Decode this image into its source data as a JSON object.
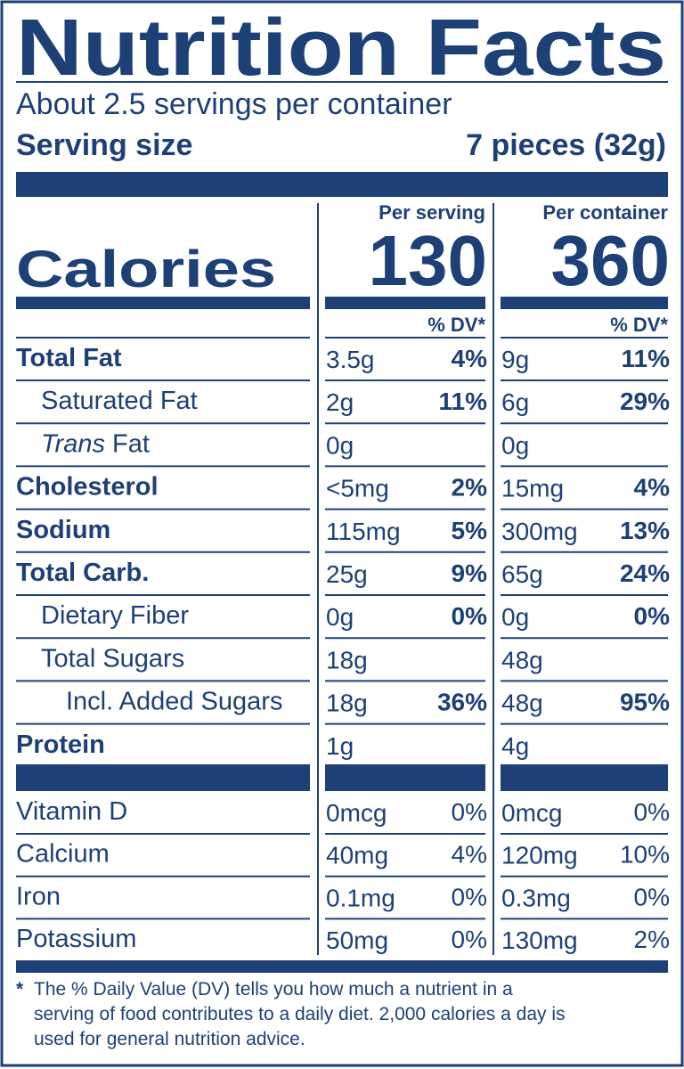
{
  "title": "Nutrition Facts",
  "servings": "About 2.5 servings per container",
  "serving_size": {
    "label": "Serving size",
    "value": "7 pieces (32g)"
  },
  "calories": {
    "label": "Calories",
    "columns": [
      {
        "heading": "Per serving",
        "value": "130"
      },
      {
        "heading": "Per container",
        "value": "360"
      }
    ]
  },
  "dv_heading": "% DV*",
  "nutrients": [
    {
      "name": "Total Fat",
      "bold": true,
      "indent": 0,
      "serving": {
        "amount": "3.5g",
        "dv": "4%"
      },
      "container": {
        "amount": "9g",
        "dv": "11%"
      }
    },
    {
      "name": "Saturated Fat",
      "bold": false,
      "indent": 1,
      "serving": {
        "amount": "2g",
        "dv": "11%"
      },
      "container": {
        "amount": "6g",
        "dv": "29%"
      }
    },
    {
      "name_italic": "Trans",
      "name": "Fat",
      "bold": false,
      "indent": 1,
      "serving": {
        "amount": "0g"
      },
      "container": {
        "amount": "0g"
      }
    },
    {
      "name": "Cholesterol",
      "bold": true,
      "indent": 0,
      "serving": {
        "amount": "<5mg",
        "dv": "2%"
      },
      "container": {
        "amount": "15mg",
        "dv": "4%"
      }
    },
    {
      "name": "Sodium",
      "bold": true,
      "indent": 0,
      "serving": {
        "amount": "115mg",
        "dv": "5%"
      },
      "container": {
        "amount": "300mg",
        "dv": "13%"
      }
    },
    {
      "name": "Total Carb.",
      "bold": true,
      "indent": 0,
      "serving": {
        "amount": "25g",
        "dv": "9%"
      },
      "container": {
        "amount": "65g",
        "dv": "24%"
      }
    },
    {
      "name": "Dietary Fiber",
      "bold": false,
      "indent": 1,
      "serving": {
        "amount": "0g",
        "dv": "0%"
      },
      "container": {
        "amount": "0g",
        "dv": "0%"
      }
    },
    {
      "name": "Total Sugars",
      "bold": false,
      "indent": 1,
      "serving": {
        "amount": "18g"
      },
      "container": {
        "amount": "48g"
      }
    },
    {
      "name": "Incl. Added Sugars",
      "bold": false,
      "indent": 2,
      "serving": {
        "amount": "18g",
        "dv": "36%"
      },
      "container": {
        "amount": "48g",
        "dv": "95%"
      }
    },
    {
      "name": "Protein",
      "bold": true,
      "indent": 0,
      "serving": {
        "amount": "1g"
      },
      "container": {
        "amount": "4g"
      }
    }
  ],
  "vitamins": [
    {
      "name": "Vitamin D",
      "serving": {
        "amount": "0mcg",
        "dv": "0%"
      },
      "container": {
        "amount": "0mcg",
        "dv": "0%"
      }
    },
    {
      "name": "Calcium",
      "serving": {
        "amount": "40mg",
        "dv": "4%"
      },
      "container": {
        "amount": "120mg",
        "dv": "10%"
      }
    },
    {
      "name": "Iron",
      "serving": {
        "amount": "0.1mg",
        "dv": "0%"
      },
      "container": {
        "amount": "0.3mg",
        "dv": "0%"
      }
    },
    {
      "name": "Potassium",
      "serving": {
        "amount": "50mg",
        "dv": "0%"
      },
      "container": {
        "amount": "130mg",
        "dv": "2%"
      }
    }
  ],
  "footnote": {
    "marker": "*",
    "lines": [
      "The % Daily Value (DV) tells you how much a nutrient in a",
      "serving of food contributes to a daily diet. 2,000 calories a day is",
      "used for general nutrition advice."
    ]
  }
}
